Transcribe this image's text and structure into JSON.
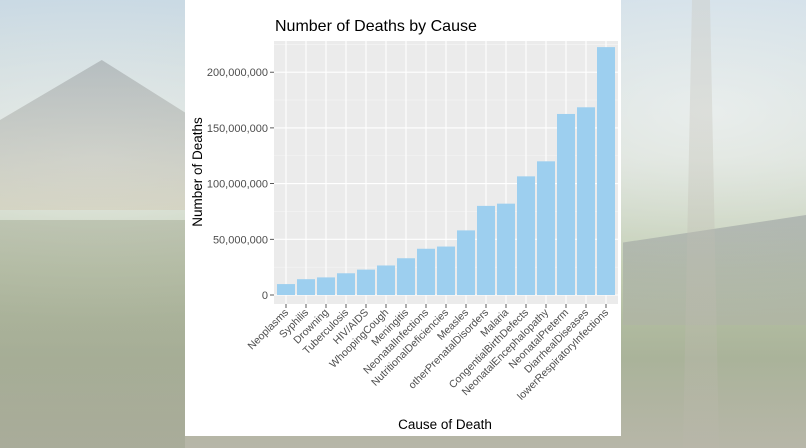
{
  "chart_data": {
    "type": "bar",
    "title": "Number of Deaths by Cause",
    "xlabel": "Cause of Death",
    "ylabel": "Number of Deaths",
    "categories": [
      "Neoplasms",
      "Syphilis",
      "Drowning",
      "Tuberculosis",
      "HIV/AIDS",
      "WhoopingCough",
      "Meningitis",
      "NeonatalInfections",
      "NutritionalDeficiencies",
      "Measles",
      "otherPrenatalDisorders",
      "Malaria",
      "CongentialBirthDefects",
      "NeonatalEncephalopathy",
      "NeonatalPreterm",
      "DiarrhealDiseases",
      "lowerRespiratoryInfections"
    ],
    "values": [
      9800000,
      14200000,
      15800000,
      19500000,
      22800000,
      26500000,
      33000000,
      41500000,
      43500000,
      58000000,
      80000000,
      82000000,
      106500000,
      120000000,
      162500000,
      168500000,
      222500000
    ],
    "ylim": [
      0,
      228000000
    ],
    "yticks": [
      0,
      50000000,
      100000000,
      150000000,
      200000000
    ],
    "ytick_labels": [
      "0",
      "50,000,000",
      "100,000,000",
      "150,000,000",
      "200,000,000"
    ],
    "bar_color": "#9dcfef",
    "panel_color": "#ebebeb",
    "grid": true
  }
}
